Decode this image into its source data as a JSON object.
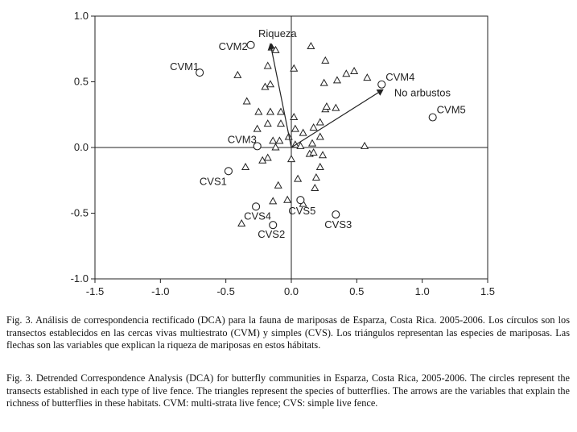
{
  "chart_data": {
    "type": "scatter",
    "xlim": [
      -1.5,
      1.5
    ],
    "ylim": [
      -1.0,
      1.0
    ],
    "x_ticks": [
      "-1.5",
      "-1.0",
      "-0.5",
      "0.0",
      "0.5",
      "1.0",
      "1.5"
    ],
    "y_ticks": [
      "1.0",
      "0.5",
      "0.0",
      "-0.5",
      "-1.0"
    ],
    "transects": [
      {
        "label": "CVM1",
        "x": -0.7,
        "y": 0.57
      },
      {
        "label": "CVM2",
        "x": -0.31,
        "y": 0.78
      },
      {
        "label": "CVM3",
        "x": -0.26,
        "y": 0.01
      },
      {
        "label": "CVM4",
        "x": 0.69,
        "y": 0.48
      },
      {
        "label": "CVM5",
        "x": 1.08,
        "y": 0.23
      },
      {
        "label": "CVS1",
        "x": -0.48,
        "y": -0.18
      },
      {
        "label": "CVS2",
        "x": -0.14,
        "y": -0.59
      },
      {
        "label": "CVS3",
        "x": 0.34,
        "y": -0.51
      },
      {
        "label": "CVS4",
        "x": -0.27,
        "y": -0.45
      },
      {
        "label": "CVS5",
        "x": 0.07,
        "y": -0.4
      }
    ],
    "species": [
      [
        -0.15,
        0.76
      ],
      [
        -0.12,
        0.74
      ],
      [
        0.15,
        0.77
      ],
      [
        0.26,
        0.66
      ],
      [
        -0.41,
        0.55
      ],
      [
        -0.18,
        0.62
      ],
      [
        0.02,
        0.6
      ],
      [
        0.42,
        0.56
      ],
      [
        0.48,
        0.58
      ],
      [
        0.58,
        0.53
      ],
      [
        -0.2,
        0.46
      ],
      [
        -0.16,
        0.48
      ],
      [
        0.25,
        0.49
      ],
      [
        0.35,
        0.51
      ],
      [
        -0.34,
        0.35
      ],
      [
        -0.25,
        0.27
      ],
      [
        -0.16,
        0.27
      ],
      [
        0.26,
        0.29
      ],
      [
        0.27,
        0.31
      ],
      [
        0.34,
        0.3
      ],
      [
        -0.08,
        0.27
      ],
      [
        0.02,
        0.23
      ],
      [
        -0.26,
        0.14
      ],
      [
        -0.18,
        0.18
      ],
      [
        -0.08,
        0.18
      ],
      [
        0.03,
        0.14
      ],
      [
        0.09,
        0.11
      ],
      [
        0.17,
        0.15
      ],
      [
        0.22,
        0.19
      ],
      [
        -0.14,
        0.05
      ],
      [
        -0.09,
        0.05
      ],
      [
        -0.02,
        0.08
      ],
      [
        0.03,
        0.02
      ],
      [
        -0.12,
        0.0
      ],
      [
        0.07,
        0.01
      ],
      [
        0.16,
        0.03
      ],
      [
        0.22,
        0.08
      ],
      [
        0.56,
        0.01
      ],
      [
        -0.22,
        -0.1
      ],
      [
        -0.18,
        -0.08
      ],
      [
        0.0,
        -0.09
      ],
      [
        0.14,
        -0.05
      ],
      [
        0.17,
        -0.04
      ],
      [
        0.24,
        -0.06
      ],
      [
        -0.35,
        -0.15
      ],
      [
        0.22,
        -0.15
      ],
      [
        0.05,
        -0.24
      ],
      [
        0.19,
        -0.23
      ],
      [
        -0.1,
        -0.29
      ],
      [
        0.18,
        -0.31
      ],
      [
        -0.14,
        -0.41
      ],
      [
        -0.03,
        -0.4
      ],
      [
        0.09,
        -0.43
      ],
      [
        -0.38,
        -0.58
      ]
    ],
    "arrows": [
      {
        "label": "Riqueza",
        "x": -0.16,
        "y": 0.79
      },
      {
        "label": "No arbustos",
        "x": 0.7,
        "y": 0.44
      }
    ]
  },
  "caption_es": "Fig. 3. Análisis de correspondencia rectificado (DCA) para la fauna de mariposas de Esparza, Costa Rica. 2005-2006. Los círculos son los transectos establecidos en las cercas vivas multiestrato (CVM) y simples (CVS). Los triángulos representan las especies de mariposas. Las flechas son las variables que explican la riqueza de mariposas en estos hábitats.",
  "caption_en": "Fig. 3. Detrended Correspondence Analysis (DCA) for butterfly communities in Esparza, Costa Rica, 2005-2006. The circles represent the transects established in each type of live fence. The triangles represent the species of butterflies. The arrows are the variables that explain the richness of butterflies in these habitats. CVM: multi-strata live fence; CVS: simple live fence."
}
